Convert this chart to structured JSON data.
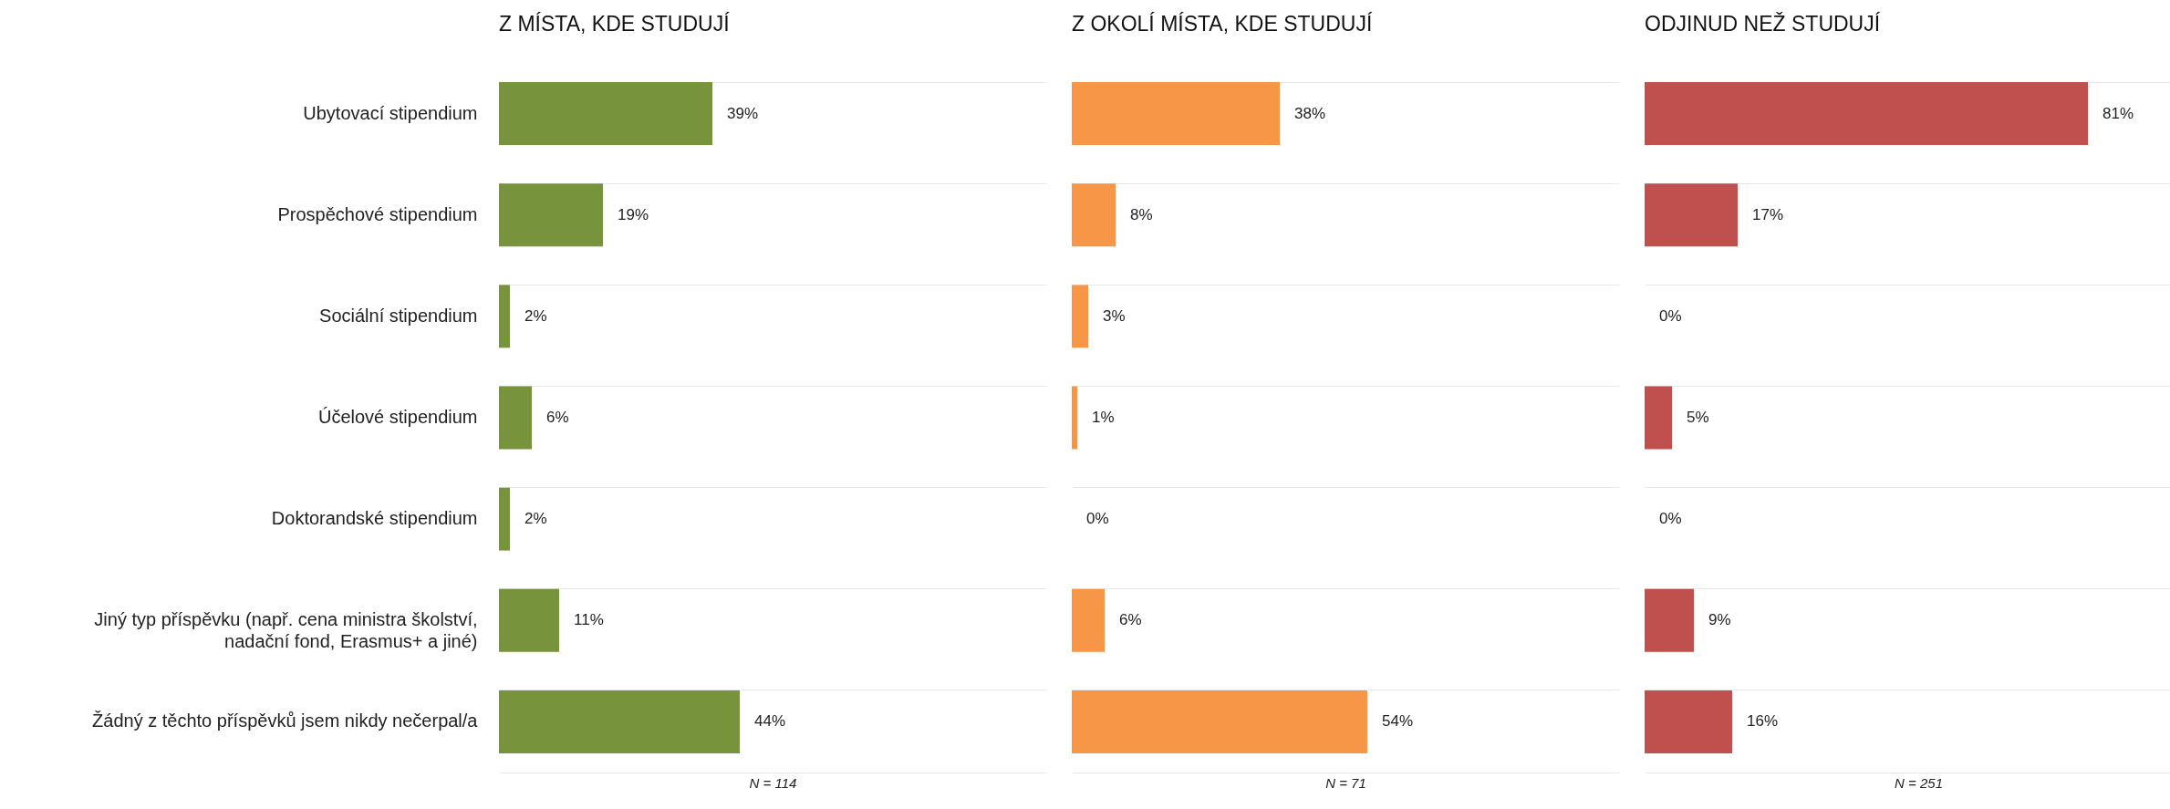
{
  "chart_data": [
    {
      "type": "bar",
      "orientation": "horizontal",
      "title": "Z MÍSTA, KDE STUDUJÍ",
      "categories": [
        "Ubytovací stipendium",
        "Prospěchové stipendium",
        "Sociální stipendium",
        "Účelové stipendium",
        "Doktorandské stipendium",
        "Jiný typ příspěvku (např. cena ministra školství,\nnadační fond, Erasmus+ a jiné)",
        "Žádný z těchto příspěvků jsem nikdy nečerpal/a"
      ],
      "values": [
        39,
        19,
        2,
        6,
        2,
        11,
        44
      ],
      "value_labels": [
        "39%",
        "19%",
        "2%",
        "6%",
        "2%",
        "11%",
        "44%"
      ],
      "color": "#77933c",
      "xlim": [
        0,
        100
      ],
      "grid": "y",
      "tick_labels": "y",
      "annotations": [
        "N = 114"
      ]
    },
    {
      "type": "bar",
      "orientation": "horizontal",
      "title": "Z OKOLÍ MÍSTA, KDE STUDUJÍ",
      "categories": [
        null,
        null,
        null,
        null,
        null,
        null,
        null
      ],
      "values": [
        38,
        8,
        3,
        1,
        0,
        6,
        54
      ],
      "value_labels": [
        "38%",
        "8%",
        "3%",
        "1%",
        "0%",
        "6%",
        "54%"
      ],
      "color": "#f79646",
      "xlim": [
        0,
        100
      ],
      "grid": "y",
      "annotations": [
        "N = 71"
      ]
    },
    {
      "type": "bar",
      "orientation": "horizontal",
      "title": "ODJINUD NEŽ STUDUJÍ",
      "categories": [
        null,
        null,
        null,
        null,
        null,
        null,
        null
      ],
      "values": [
        81,
        17,
        0,
        5,
        0,
        9,
        16
      ],
      "value_labels": [
        "81%",
        "17%",
        "0%",
        "5%",
        "0%",
        "9%",
        "16%"
      ],
      "color": "#c0504d",
      "xlim": [
        0,
        100
      ],
      "grid": "y",
      "annotations": [
        "N = 251"
      ]
    }
  ]
}
